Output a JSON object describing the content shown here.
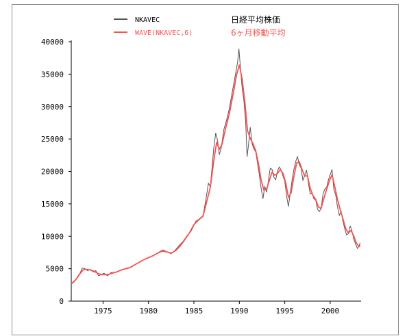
{
  "chart_data": {
    "type": "line",
    "title": "",
    "xlabel": "",
    "ylabel": "",
    "xlim": [
      1971.5,
      2003.4
    ],
    "ylim": [
      0,
      40000
    ],
    "x_ticks": [
      1975,
      1980,
      1985,
      1990,
      1995,
      2000
    ],
    "y_ticks": [
      0,
      5000,
      10000,
      15000,
      20000,
      25000,
      30000,
      35000,
      40000
    ],
    "grid": false,
    "legend": {
      "placement": "top",
      "entries": [
        {
          "series": "NKAVEC",
          "label": "NKAVEC",
          "description": "日経平均株価",
          "color": "#555555"
        },
        {
          "series": "WAVE(NKAVEC,6)",
          "label": "WAVE(NKAVEC,6)",
          "description": "6ヶ月移動平均",
          "color": "#ff5050"
        }
      ]
    },
    "series": [
      {
        "name": "NKAVEC",
        "color": "#555555",
        "points": [
          [
            1971.6,
            2700
          ],
          [
            1971.9,
            3100
          ],
          [
            1972.2,
            3800
          ],
          [
            1972.5,
            4400
          ],
          [
            1972.7,
            5100
          ],
          [
            1973.0,
            5000
          ],
          [
            1973.3,
            4700
          ],
          [
            1973.6,
            4900
          ],
          [
            1973.9,
            4500
          ],
          [
            1974.2,
            4700
          ],
          [
            1974.5,
            3900
          ],
          [
            1974.8,
            4100
          ],
          [
            1975.1,
            4300
          ],
          [
            1975.5,
            3900
          ],
          [
            1975.9,
            4400
          ],
          [
            1976.3,
            4400
          ],
          [
            1976.7,
            4600
          ],
          [
            1977.2,
            4900
          ],
          [
            1977.7,
            5000
          ],
          [
            1978.2,
            5300
          ],
          [
            1978.7,
            5800
          ],
          [
            1979.2,
            6200
          ],
          [
            1979.7,
            6500
          ],
          [
            1980.2,
            6800
          ],
          [
            1980.7,
            7200
          ],
          [
            1981.2,
            7600
          ],
          [
            1981.6,
            7900
          ],
          [
            1982.0,
            7600
          ],
          [
            1982.5,
            7300
          ],
          [
            1982.9,
            7800
          ],
          [
            1983.4,
            8600
          ],
          [
            1983.8,
            9200
          ],
          [
            1984.3,
            10200
          ],
          [
            1984.7,
            10800
          ],
          [
            1985.2,
            12300
          ],
          [
            1985.6,
            12700
          ],
          [
            1986.0,
            13200
          ],
          [
            1986.3,
            15500
          ],
          [
            1986.6,
            18200
          ],
          [
            1986.8,
            17600
          ],
          [
            1987.0,
            20600
          ],
          [
            1987.2,
            23800
          ],
          [
            1987.4,
            25900
          ],
          [
            1987.6,
            24800
          ],
          [
            1987.8,
            22600
          ],
          [
            1988.0,
            23600
          ],
          [
            1988.3,
            26500
          ],
          [
            1988.6,
            27900
          ],
          [
            1988.9,
            29700
          ],
          [
            1989.2,
            32100
          ],
          [
            1989.5,
            34400
          ],
          [
            1989.8,
            36800
          ],
          [
            1989.95,
            38900
          ],
          [
            1990.1,
            36400
          ],
          [
            1990.3,
            33000
          ],
          [
            1990.5,
            31000
          ],
          [
            1990.7,
            27500
          ],
          [
            1990.85,
            22300
          ],
          [
            1991.0,
            24000
          ],
          [
            1991.2,
            26800
          ],
          [
            1991.4,
            24300
          ],
          [
            1991.6,
            23500
          ],
          [
            1991.8,
            23000
          ],
          [
            1992.0,
            21300
          ],
          [
            1992.2,
            19500
          ],
          [
            1992.4,
            17400
          ],
          [
            1992.6,
            15800
          ],
          [
            1992.8,
            17700
          ],
          [
            1993.0,
            16800
          ],
          [
            1993.2,
            18500
          ],
          [
            1993.4,
            20500
          ],
          [
            1993.6,
            20300
          ],
          [
            1993.8,
            19100
          ],
          [
            1994.0,
            18700
          ],
          [
            1994.2,
            20100
          ],
          [
            1994.4,
            20700
          ],
          [
            1994.6,
            20200
          ],
          [
            1994.8,
            19300
          ],
          [
            1995.0,
            18500
          ],
          [
            1995.2,
            16200
          ],
          [
            1995.4,
            14600
          ],
          [
            1995.6,
            16600
          ],
          [
            1995.8,
            18600
          ],
          [
            1996.0,
            20300
          ],
          [
            1996.2,
            21500
          ],
          [
            1996.4,
            22300
          ],
          [
            1996.6,
            21000
          ],
          [
            1996.8,
            20500
          ],
          [
            1997.0,
            18600
          ],
          [
            1997.2,
            19400
          ],
          [
            1997.4,
            20200
          ],
          [
            1997.6,
            18200
          ],
          [
            1997.8,
            16500
          ],
          [
            1998.0,
            16700
          ],
          [
            1998.2,
            15800
          ],
          [
            1998.4,
            15600
          ],
          [
            1998.6,
            14200
          ],
          [
            1998.8,
            13800
          ],
          [
            1999.0,
            14300
          ],
          [
            1999.2,
            16400
          ],
          [
            1999.4,
            17300
          ],
          [
            1999.6,
            17500
          ],
          [
            1999.8,
            18700
          ],
          [
            2000.0,
            19500
          ],
          [
            2000.2,
            20300
          ],
          [
            2000.4,
            17200
          ],
          [
            2000.6,
            16400
          ],
          [
            2000.8,
            14600
          ],
          [
            2001.0,
            13200
          ],
          [
            2001.2,
            13900
          ],
          [
            2001.4,
            12300
          ],
          [
            2001.6,
            11200
          ],
          [
            2001.8,
            10200
          ],
          [
            2002.0,
            10400
          ],
          [
            2002.2,
            11600
          ],
          [
            2002.4,
            10800
          ],
          [
            2002.6,
            9500
          ],
          [
            2002.8,
            8800
          ],
          [
            2003.0,
            8100
          ],
          [
            2003.2,
            8600
          ],
          [
            2003.3,
            9000
          ]
        ]
      },
      {
        "name": "WAVE(NKAVEC,6)",
        "color": "#ff5050",
        "points": [
          [
            1971.6,
            2800
          ],
          [
            1972.0,
            3300
          ],
          [
            1972.4,
            4100
          ],
          [
            1972.8,
            4800
          ],
          [
            1973.2,
            4900
          ],
          [
            1973.6,
            4800
          ],
          [
            1974.0,
            4600
          ],
          [
            1974.4,
            4300
          ],
          [
            1974.8,
            4100
          ],
          [
            1975.2,
            4100
          ],
          [
            1975.6,
            4100
          ],
          [
            1976.0,
            4300
          ],
          [
            1976.5,
            4500
          ],
          [
            1977.0,
            4800
          ],
          [
            1977.5,
            5000
          ],
          [
            1978.0,
            5200
          ],
          [
            1978.5,
            5600
          ],
          [
            1979.0,
            6000
          ],
          [
            1979.5,
            6400
          ],
          [
            1980.0,
            6700
          ],
          [
            1980.5,
            7000
          ],
          [
            1981.0,
            7400
          ],
          [
            1981.5,
            7700
          ],
          [
            1982.0,
            7600
          ],
          [
            1982.5,
            7400
          ],
          [
            1983.0,
            7800
          ],
          [
            1983.5,
            8500
          ],
          [
            1984.0,
            9500
          ],
          [
            1984.5,
            10500
          ],
          [
            1985.0,
            11800
          ],
          [
            1985.5,
            12500
          ],
          [
            1986.0,
            13100
          ],
          [
            1986.4,
            15300
          ],
          [
            1986.8,
            17500
          ],
          [
            1987.2,
            21800
          ],
          [
            1987.5,
            24500
          ],
          [
            1987.8,
            23400
          ],
          [
            1988.1,
            24200
          ],
          [
            1988.5,
            26700
          ],
          [
            1988.9,
            28900
          ],
          [
            1989.3,
            31800
          ],
          [
            1989.7,
            34900
          ],
          [
            1990.0,
            36400
          ],
          [
            1990.3,
            34300
          ],
          [
            1990.6,
            30800
          ],
          [
            1990.9,
            26300
          ],
          [
            1991.2,
            25100
          ],
          [
            1991.5,
            24300
          ],
          [
            1991.8,
            23200
          ],
          [
            1992.1,
            21200
          ],
          [
            1992.4,
            18700
          ],
          [
            1992.7,
            17100
          ],
          [
            1993.0,
            17300
          ],
          [
            1993.3,
            18600
          ],
          [
            1993.6,
            19900
          ],
          [
            1993.9,
            19400
          ],
          [
            1994.2,
            19700
          ],
          [
            1994.5,
            20300
          ],
          [
            1994.8,
            19700
          ],
          [
            1995.1,
            18300
          ],
          [
            1995.4,
            16000
          ],
          [
            1995.7,
            16700
          ],
          [
            1996.0,
            19200
          ],
          [
            1996.3,
            21300
          ],
          [
            1996.6,
            21500
          ],
          [
            1996.9,
            20300
          ],
          [
            1997.2,
            19300
          ],
          [
            1997.5,
            19300
          ],
          [
            1997.8,
            17400
          ],
          [
            1998.1,
            16300
          ],
          [
            1998.4,
            15700
          ],
          [
            1998.7,
            14500
          ],
          [
            1999.0,
            14300
          ],
          [
            1999.3,
            15800
          ],
          [
            1999.6,
            17200
          ],
          [
            1999.9,
            18500
          ],
          [
            2000.2,
            19500
          ],
          [
            2000.5,
            17700
          ],
          [
            2000.8,
            15700
          ],
          [
            2001.1,
            14100
          ],
          [
            2001.4,
            12700
          ],
          [
            2001.7,
            11200
          ],
          [
            2002.0,
            10500
          ],
          [
            2002.3,
            10900
          ],
          [
            2002.6,
            10000
          ],
          [
            2002.9,
            8900
          ],
          [
            2003.2,
            8400
          ],
          [
            2003.3,
            8600
          ]
        ]
      }
    ]
  }
}
